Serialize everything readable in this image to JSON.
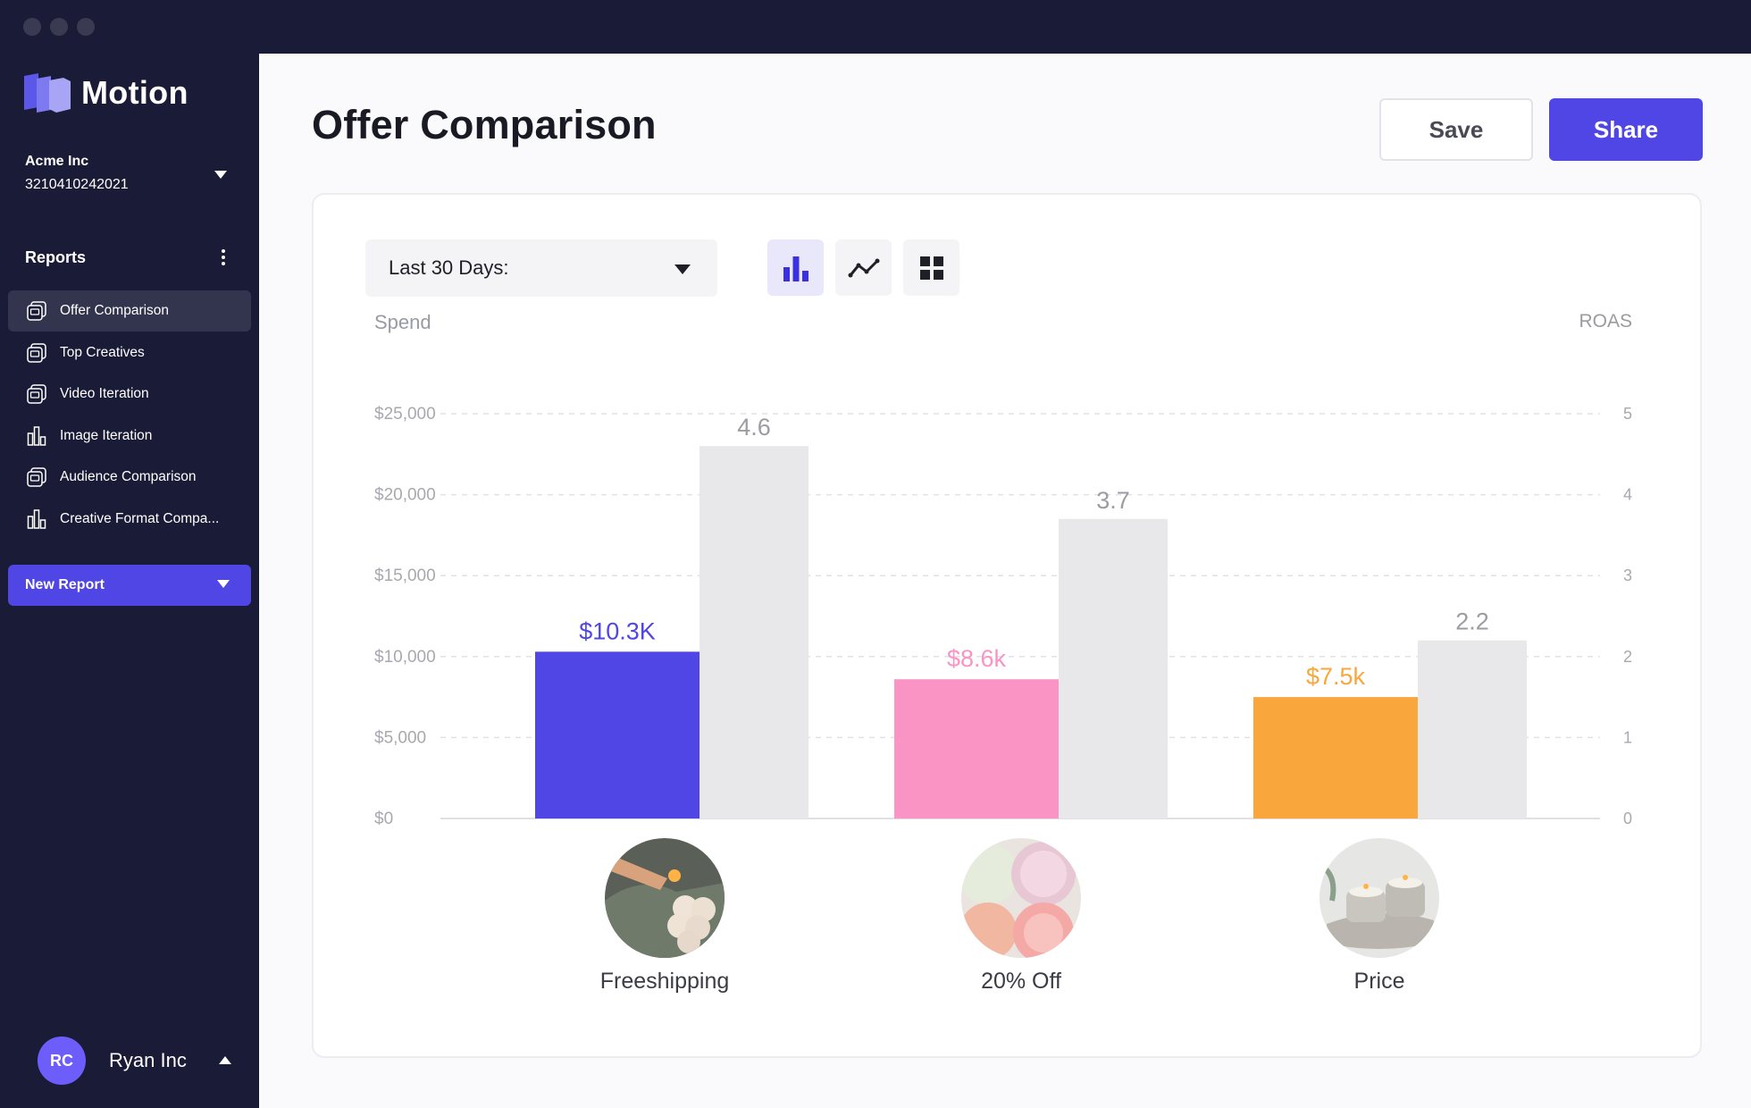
{
  "app": {
    "brand": "Motion"
  },
  "account": {
    "name": "Acme Inc",
    "id": "3210410242021"
  },
  "sidebar": {
    "section_title": "Reports",
    "items": [
      {
        "label": "Offer Comparison",
        "icon": "report-icon",
        "active": true
      },
      {
        "label": "Top Creatives",
        "icon": "report-icon",
        "active": false
      },
      {
        "label": "Video Iteration",
        "icon": "report-icon",
        "active": false
      },
      {
        "label": "Image Iteration",
        "icon": "bar-chart-icon",
        "active": false
      },
      {
        "label": "Audience Comparison",
        "icon": "report-icon",
        "active": false
      },
      {
        "label": "Creative Format Compa...",
        "icon": "bar-chart-icon",
        "active": false
      }
    ],
    "new_report_label": "New Report"
  },
  "user": {
    "initials": "RC",
    "name": "Ryan Inc"
  },
  "header": {
    "title": "Offer Comparison",
    "save_label": "Save",
    "share_label": "Share"
  },
  "filters": {
    "date_range": "Last 30 Days:"
  },
  "view_toggles": [
    {
      "name": "bar-chart-view",
      "active": true
    },
    {
      "name": "line-chart-view",
      "active": false
    },
    {
      "name": "grid-view",
      "active": false
    }
  ],
  "colors": {
    "accent": "#4f46e5",
    "pink": "#f994c4",
    "orange": "#f9a63c",
    "roas_bar": "#e8e8ea"
  },
  "chart_data": {
    "type": "bar",
    "categories": [
      "Freeshipping",
      "20% Off",
      "Price"
    ],
    "series": [
      {
        "values": [
          10300,
          8600,
          7500
        ],
        "labels": [
          "$10.3K",
          "$8.6k",
          "$7.5k"
        ],
        "colors": [
          "#4f46e5",
          "#f994c4",
          "#f9a63c"
        ],
        "axis": "left"
      },
      {
        "values": [
          4.6,
          3.7,
          2.2
        ],
        "labels": [
          "4.6",
          "3.7",
          "2.2"
        ],
        "colors": [
          "#e8e8ea",
          "#e8e8ea",
          "#e8e8ea"
        ],
        "axis": "right"
      }
    ],
    "ylabel": "Spend",
    "y2label": "ROAS",
    "ylim": [
      0,
      25000
    ],
    "y2lim": [
      0,
      5
    ],
    "yticks": [
      "$0",
      "$5,000",
      "$10,000",
      "$15,000",
      "$20,000",
      "$25,000"
    ],
    "y2ticks": [
      "0",
      "1",
      "2",
      "3",
      "4",
      "5"
    ],
    "grid": true
  }
}
